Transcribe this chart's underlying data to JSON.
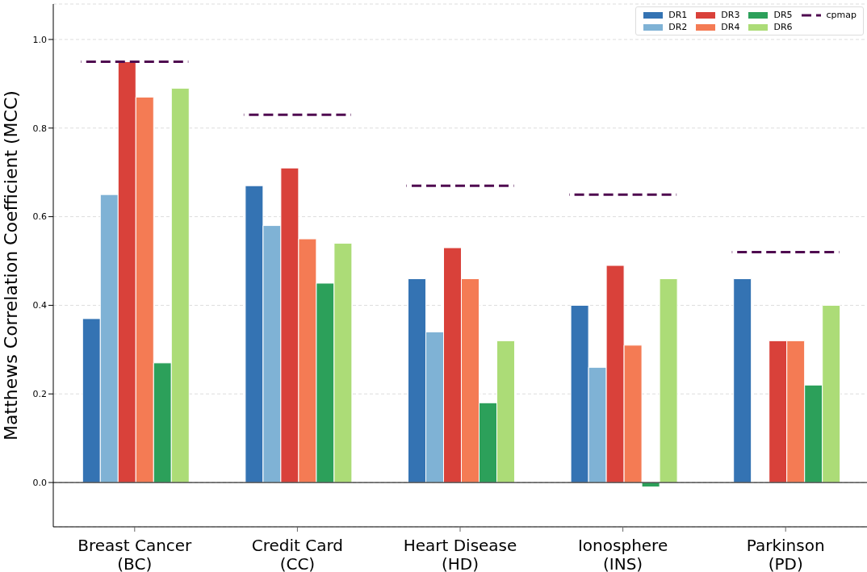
{
  "chart_data": {
    "type": "bar",
    "ylabel": "Matthews Correlation Coefficient (MCC)",
    "categories": [
      "Breast Cancer\n(BC)",
      "Credit Card\n(CC)",
      "Heart Disease\n(HD)",
      "Ionosphere\n(INS)",
      "Parkinson\n(PD)"
    ],
    "series": [
      {
        "name": "DR1",
        "color": "#3473b3",
        "values": [
          0.37,
          0.67,
          0.46,
          0.4,
          0.46
        ]
      },
      {
        "name": "DR2",
        "color": "#7fb2d5",
        "values": [
          0.65,
          0.58,
          0.34,
          0.26,
          null
        ]
      },
      {
        "name": "DR3",
        "color": "#d9413a",
        "values": [
          0.95,
          0.71,
          0.53,
          0.49,
          0.32
        ]
      },
      {
        "name": "DR4",
        "color": "#f47b54",
        "values": [
          0.87,
          0.55,
          0.46,
          0.31,
          0.32
        ]
      },
      {
        "name": "DR5",
        "color": "#2ca05a",
        "values": [
          0.27,
          0.45,
          0.18,
          -0.01,
          0.22
        ]
      },
      {
        "name": "DR6",
        "color": "#acdc77",
        "values": [
          0.89,
          0.54,
          0.32,
          0.46,
          0.4
        ]
      }
    ],
    "ref_lines": [
      {
        "axis": "y",
        "value": 0.95,
        "label": "cpmap",
        "color": "#4f0a50",
        "line_style": "dashed"
      },
      {
        "axis": "y",
        "value": 0.83,
        "color": "#4f0a50",
        "line_style": "dashed"
      },
      {
        "axis": "y",
        "value": 0.67,
        "color": "#4f0a50",
        "line_style": "dashed"
      },
      {
        "axis": "y",
        "value": 0.65,
        "color": "#4f0a50",
        "line_style": "dashed"
      },
      {
        "axis": "y",
        "value": 0.52,
        "color": "#4f0a50",
        "line_style": "dashed"
      }
    ],
    "ylim": [
      -0.1,
      1.08
    ],
    "yticks": [
      {
        "value": 0,
        "label": "0.0"
      },
      {
        "value": 0.2,
        "label": "0.2"
      },
      {
        "value": 0.4,
        "label": "0.4"
      },
      {
        "value": 0.6,
        "label": "0.6"
      },
      {
        "value": 0.8,
        "label": "0.8"
      },
      {
        "value": 1,
        "label": "1.0"
      }
    ],
    "grid": "y",
    "legend": "top right"
  }
}
